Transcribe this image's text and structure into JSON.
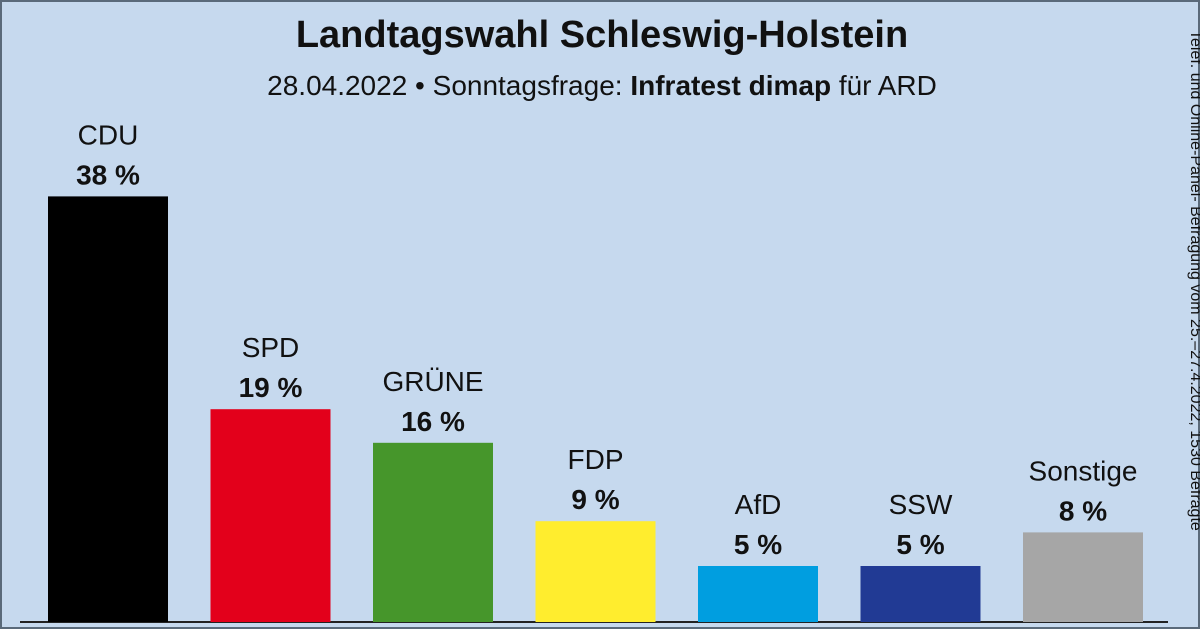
{
  "header": {
    "title": "Landtagswahl Schleswig-Holstein",
    "subtitle_date": "28.04.2022 • Sonntagsfrage:",
    "subtitle_institute": "Infratest dimap",
    "subtitle_client": "für ARD"
  },
  "side_note": "Telef. und Online-Panel- Befragung vom 25.–27.4.2022, 1530 Befragte",
  "chart_data": {
    "type": "bar",
    "title": "Landtagswahl Schleswig-Holstein",
    "categories": [
      "CDU",
      "SPD",
      "GRÜNE",
      "FDP",
      "AfD",
      "SSW",
      "Sonstige"
    ],
    "values": [
      38,
      19,
      16,
      9,
      5,
      5,
      8
    ],
    "value_labels": [
      "38 %",
      "19 %",
      "16 %",
      "9 %",
      "5 %",
      "5 %",
      "8 %"
    ],
    "colors": [
      "#000000",
      "#e3001b",
      "#46962b",
      "#ffed2e",
      "#009ee0",
      "#213a94",
      "#a6a6a6"
    ],
    "ylim": [
      0,
      40
    ],
    "grid": false,
    "legend": "none"
  }
}
